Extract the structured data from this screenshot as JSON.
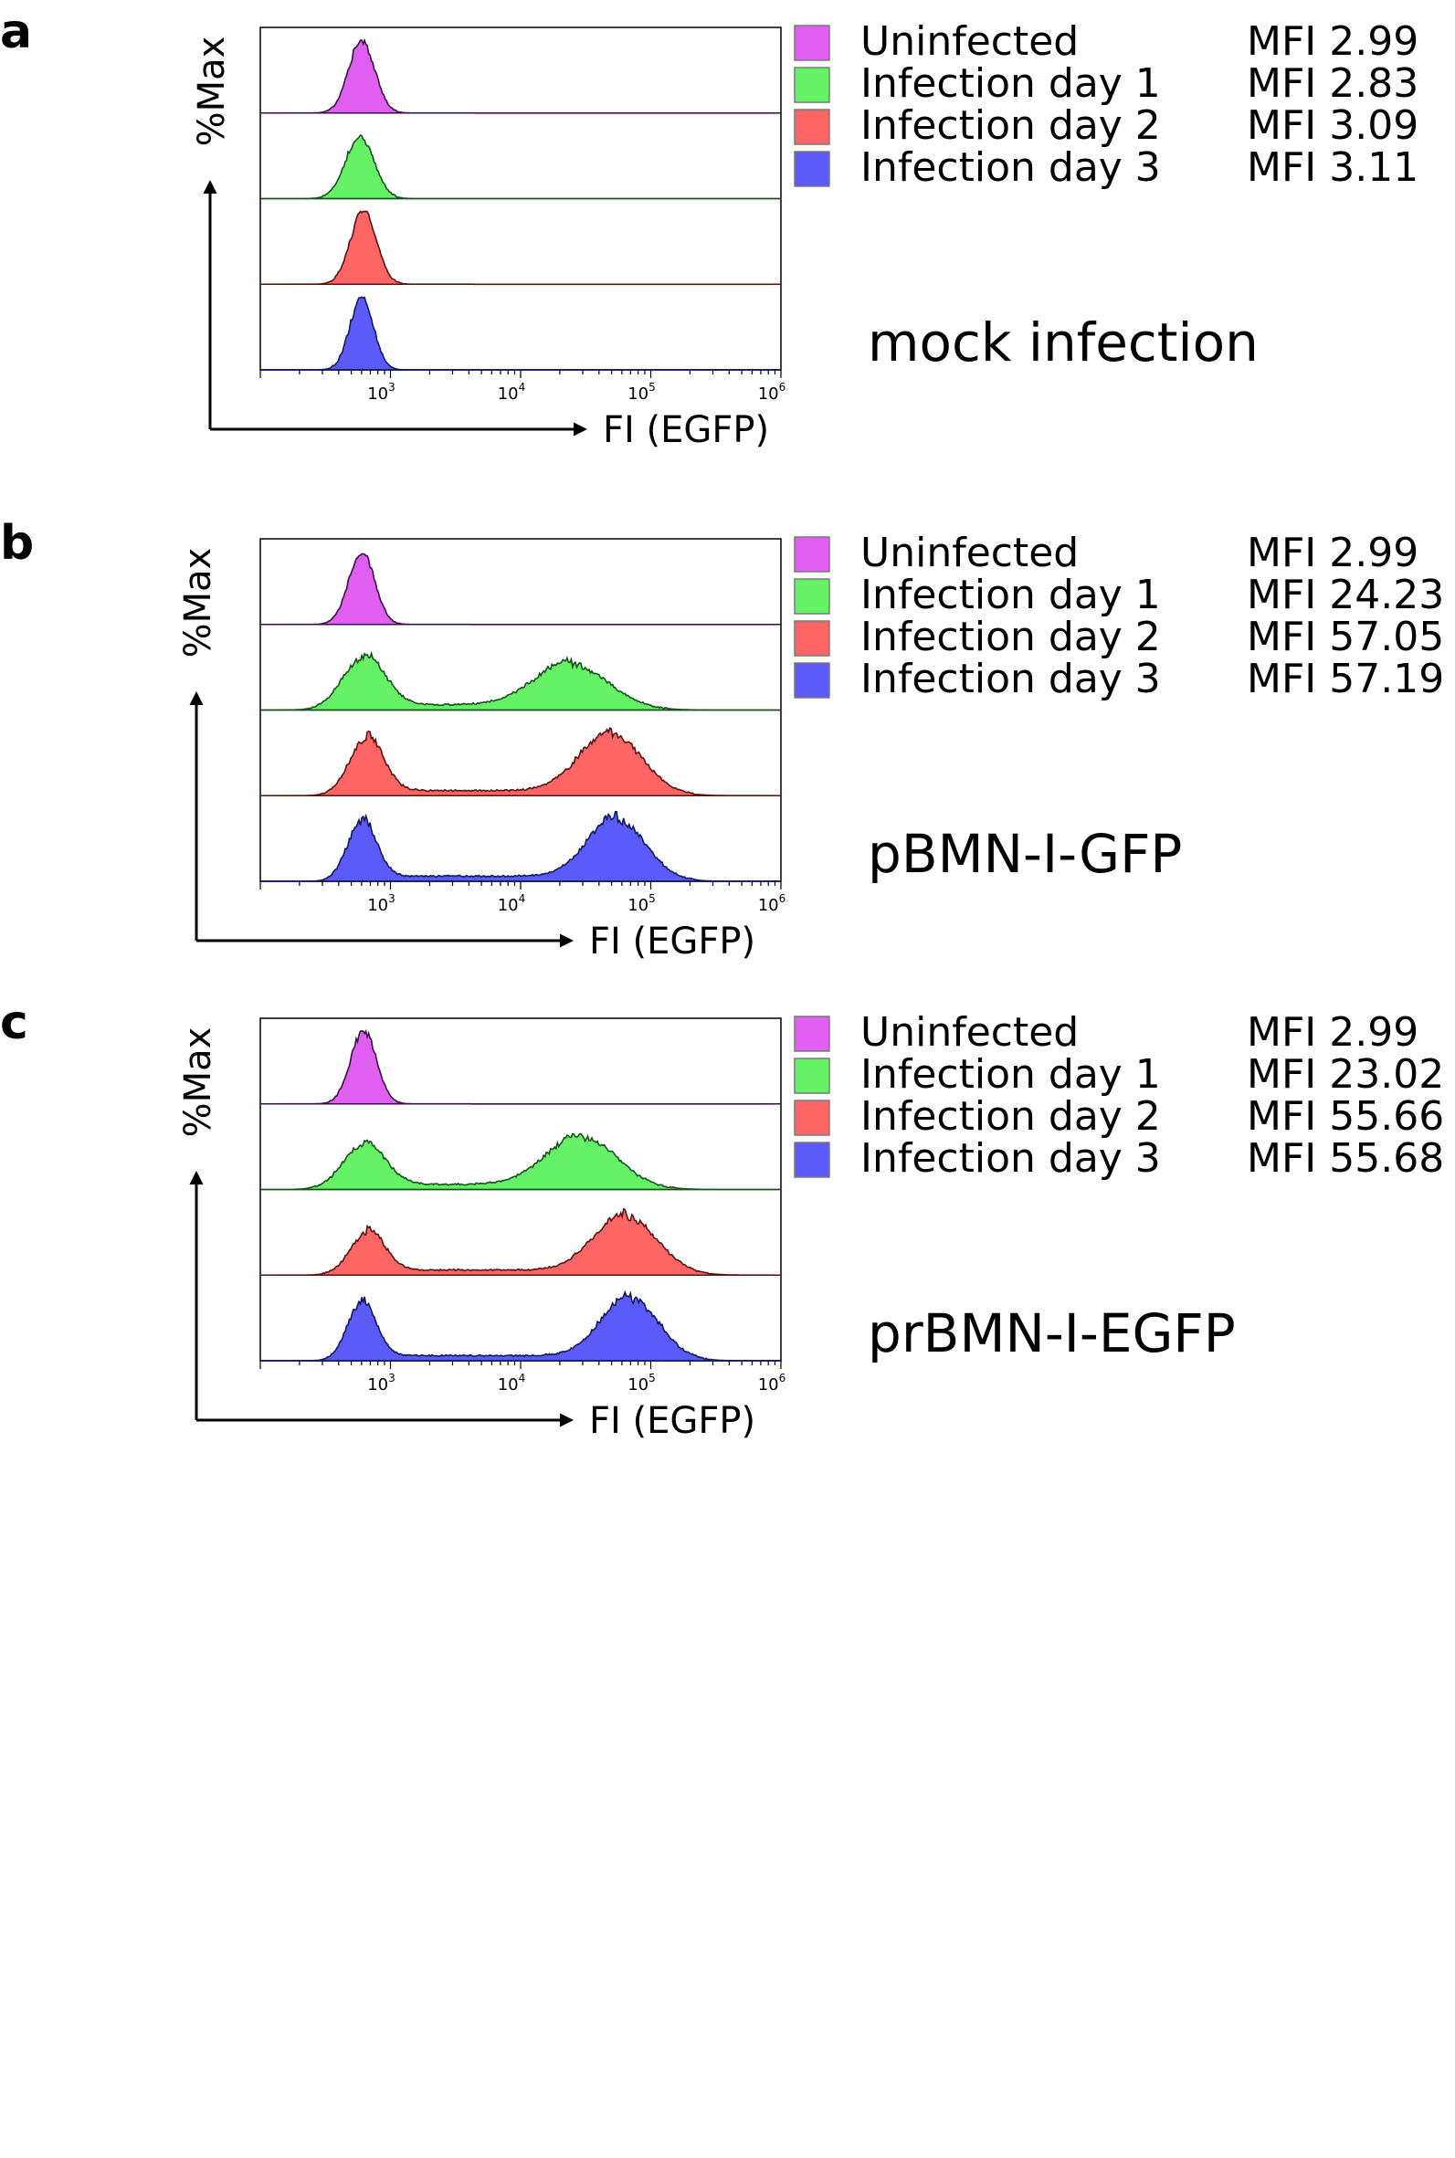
{
  "chart_data": [
    {
      "type": "histogram",
      "panel_label": "a",
      "title": "mock infection",
      "xlabel": "FI (EGFP)",
      "ylabel": "%Max",
      "x_scale": "log",
      "xlim": [
        100,
        1000000
      ],
      "x_ticks": [
        {
          "base": "10",
          "exp": "3"
        },
        {
          "base": "10",
          "exp": "4"
        },
        {
          "base": "10",
          "exp": "5"
        },
        {
          "base": "10",
          "exp": "6"
        }
      ],
      "series": [
        {
          "name": "Uninfected",
          "mfi_label": "MFI 2.99",
          "color": "#e05ff0",
          "stroke": "#3a0f45",
          "peaks": [
            {
              "center": 600,
              "sigma": 0.1,
              "amp": 1.0
            }
          ]
        },
        {
          "name": "Infection day 1",
          "mfi_label": "MFI 2.83",
          "color": "#66f266",
          "stroke": "#16521c",
          "peaks": [
            {
              "center": 580,
              "sigma": 0.11,
              "amp": 0.85
            }
          ]
        },
        {
          "name": "Infection day 2",
          "mfi_label": "MFI 3.09",
          "color": "#fe6666",
          "stroke": "#5b1212",
          "peaks": [
            {
              "center": 620,
              "sigma": 0.1,
              "amp": 1.0
            }
          ]
        },
        {
          "name": "Infection day 3",
          "mfi_label": "MFI 3.11",
          "color": "#5b5bfa",
          "stroke": "#111a5e",
          "peaks": [
            {
              "center": 600,
              "sigma": 0.09,
              "amp": 1.0
            }
          ]
        }
      ]
    },
    {
      "type": "histogram",
      "panel_label": "b",
      "title": "pBMN-I-GFP",
      "xlabel": "FI (EGFP)",
      "ylabel": "%Max",
      "x_scale": "log",
      "xlim": [
        100,
        1000000
      ],
      "x_ticks": [
        {
          "base": "10",
          "exp": "3"
        },
        {
          "base": "10",
          "exp": "4"
        },
        {
          "base": "10",
          "exp": "5"
        },
        {
          "base": "10",
          "exp": "6"
        }
      ],
      "series": [
        {
          "name": "Uninfected",
          "mfi_label": "MFI 2.99",
          "color": "#e05ff0",
          "stroke": "#3a0f45",
          "peaks": [
            {
              "center": 600,
              "sigma": 0.1,
              "amp": 1.0
            }
          ]
        },
        {
          "name": "Infection day 1",
          "mfi_label": "MFI 24.23",
          "color": "#66f266",
          "stroke": "#16521c",
          "peaks": [
            {
              "center": 620,
              "sigma": 0.16,
              "amp": 0.72
            },
            {
              "center": 25000,
              "sigma": 0.28,
              "amp": 0.62
            }
          ]
        },
        {
          "name": "Infection day 2",
          "mfi_label": "MFI 57.05",
          "color": "#fe6666",
          "stroke": "#5b1212",
          "peaks": [
            {
              "center": 650,
              "sigma": 0.13,
              "amp": 0.78
            },
            {
              "center": 50000,
              "sigma": 0.24,
              "amp": 0.83
            }
          ]
        },
        {
          "name": "Infection day 3",
          "mfi_label": "MFI 57.19",
          "color": "#5b5bfa",
          "stroke": "#111a5e",
          "peaks": [
            {
              "center": 600,
              "sigma": 0.11,
              "amp": 0.82
            },
            {
              "center": 55000,
              "sigma": 0.22,
              "amp": 0.84
            }
          ]
        }
      ]
    },
    {
      "type": "histogram",
      "panel_label": "c",
      "title": "prBMN-I-EGFP",
      "xlabel": "FI (EGFP)",
      "ylabel": "%Max",
      "x_scale": "log",
      "xlim": [
        100,
        1000000
      ],
      "x_ticks": [
        {
          "base": "10",
          "exp": "3"
        },
        {
          "base": "10",
          "exp": "4"
        },
        {
          "base": "10",
          "exp": "5"
        },
        {
          "base": "10",
          "exp": "6"
        }
      ],
      "series": [
        {
          "name": "Uninfected",
          "mfi_label": "MFI 2.99",
          "color": "#e05ff0",
          "stroke": "#3a0f45",
          "peaks": [
            {
              "center": 620,
              "sigma": 0.1,
              "amp": 1.0
            }
          ]
        },
        {
          "name": "Infection day 1",
          "mfi_label": "MFI 23.02",
          "color": "#66f266",
          "stroke": "#16521c",
          "peaks": [
            {
              "center": 620,
              "sigma": 0.16,
              "amp": 0.6
            },
            {
              "center": 30000,
              "sigma": 0.27,
              "amp": 0.7
            }
          ]
        },
        {
          "name": "Infection day 2",
          "mfi_label": "MFI 55.66",
          "color": "#fe6666",
          "stroke": "#5b1212",
          "peaks": [
            {
              "center": 660,
              "sigma": 0.13,
              "amp": 0.58
            },
            {
              "center": 65000,
              "sigma": 0.24,
              "amp": 0.79
            }
          ]
        },
        {
          "name": "Infection day 3",
          "mfi_label": "MFI 55.68",
          "color": "#5b5bfa",
          "stroke": "#111a5e",
          "peaks": [
            {
              "center": 600,
              "sigma": 0.11,
              "amp": 0.78
            },
            {
              "center": 70000,
              "sigma": 0.22,
              "amp": 0.85
            }
          ]
        }
      ]
    }
  ]
}
